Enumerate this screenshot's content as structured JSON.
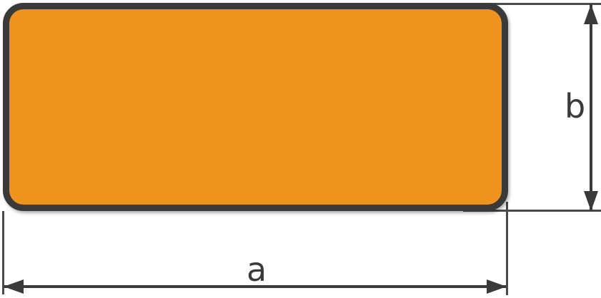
{
  "page": {
    "background_color": "#FFFFFF",
    "description": "Technical dimension drawing of a flat rectangular bar profile (cross-section) with rounded corners; width labelled a, height labelled b"
  },
  "shape": {
    "type": "rounded-rectangle-profile",
    "fill_color": "#F0921E",
    "outline_color": "#3A3A3A"
  },
  "dimensions": {
    "line_color": "#3A3A3A",
    "width": {
      "label": "a",
      "orientation": "horizontal",
      "measures": "overall width of profile"
    },
    "height": {
      "label": "b",
      "orientation": "vertical",
      "measures": "overall height of profile"
    }
  }
}
